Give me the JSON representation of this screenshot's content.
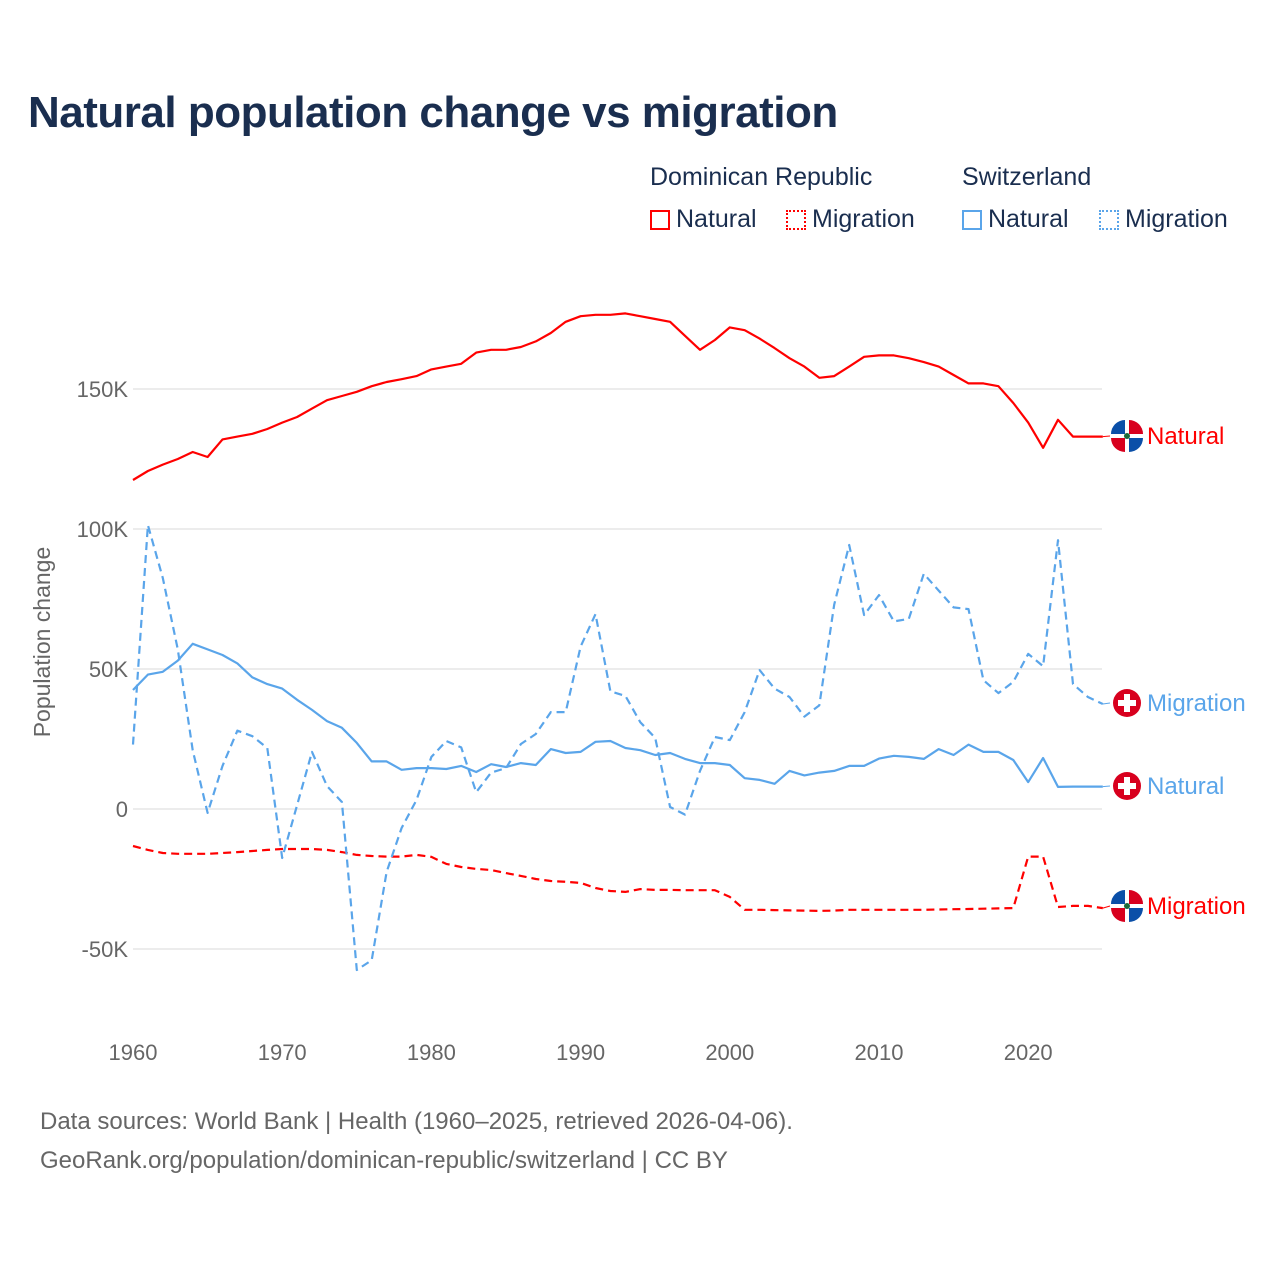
{
  "title": "Natural population change vs migration",
  "legend": {
    "groups": [
      {
        "name": "Dominican Republic",
        "items": [
          {
            "label": "Natural",
            "style": "solid"
          },
          {
            "label": "Migration",
            "style": "dotted"
          }
        ],
        "color": "#ff0000"
      },
      {
        "name": "Switzerland",
        "items": [
          {
            "label": "Natural",
            "style": "solid"
          },
          {
            "label": "Migration",
            "style": "dotted"
          }
        ],
        "color": "#5aa5ea"
      }
    ]
  },
  "footer": {
    "line1": "Data sources: World Bank | Health (1960–2025, retrieved 2026-04-06).",
    "line2": "GeoRank.org/population/dominican-republic/switzerland | CC BY"
  },
  "chart_data": {
    "type": "line",
    "title": "Natural population change vs migration",
    "xlabel": "",
    "ylabel": "Population change",
    "xlim": [
      1960,
      2025
    ],
    "ylim": [
      -70000,
      185000
    ],
    "x_ticks": [
      1960,
      1970,
      1980,
      1990,
      2000,
      2010,
      2020
    ],
    "x_tick_labels": [
      "1960",
      "1970",
      "1980",
      "1990",
      "2000",
      "2010",
      "2020"
    ],
    "y_ticks": [
      150000,
      100000,
      50000,
      0,
      -50000
    ],
    "y_tick_labels": [
      "150K",
      "100K",
      "50K",
      "0",
      "-50K"
    ],
    "grid": true,
    "legend_placement": "top-right",
    "x_start": 1960,
    "series": [
      {
        "name": "Dominican Republic Natural",
        "end_label": "Natural",
        "country": "Dominican Republic",
        "color": "#ff0000",
        "dash": false,
        "values": [
          117500,
          120700,
          123000,
          125000,
          127500,
          125700,
          132000,
          133000,
          134000,
          135700,
          138000,
          140000,
          143000,
          146000,
          147500,
          149000,
          151000,
          152500,
          153500,
          154600,
          157000,
          158000,
          159000,
          163000,
          164000,
          164000,
          165000,
          167000,
          170000,
          174000,
          176000,
          176500,
          176500,
          177000,
          176000,
          175000,
          174000,
          169000,
          164000,
          167500,
          172000,
          171000,
          168000,
          164600,
          161000,
          158000,
          154000,
          154600,
          158000,
          161500,
          162000,
          162000,
          161000,
          159600,
          158000,
          155000,
          152000,
          152000,
          151000,
          145000,
          138000,
          129000,
          139000,
          133000,
          133000,
          133000
        ]
      },
      {
        "name": "Dominican Republic Migration",
        "end_label": "Migration",
        "country": "Dominican Republic",
        "color": "#ff0000",
        "dash": true,
        "values": [
          -13200,
          -14600,
          -15700,
          -16000,
          -16000,
          -16000,
          -15700,
          -15400,
          -15000,
          -14600,
          -14300,
          -14300,
          -14300,
          -14600,
          -15400,
          -16400,
          -16800,
          -17000,
          -17000,
          -16400,
          -17100,
          -19600,
          -20700,
          -21400,
          -21800,
          -22900,
          -23900,
          -25000,
          -25700,
          -26000,
          -26400,
          -28200,
          -29300,
          -29600,
          -28600,
          -28900,
          -28900,
          -29000,
          -29000,
          -29000,
          -31400,
          -36000,
          -36000,
          -36100,
          -36200,
          -36300,
          -36400,
          -36300,
          -36000,
          -36000,
          -36000,
          -36000,
          -36000,
          -36000,
          -35900,
          -35800,
          -35700,
          -35600,
          -35500,
          -35400,
          -17000,
          -17000,
          -35000,
          -34600,
          -34600,
          -35400
        ]
      },
      {
        "name": "Switzerland Natural",
        "end_label": "Natural",
        "country": "Switzerland",
        "color": "#5aa5ea",
        "dash": false,
        "values": [
          42500,
          48000,
          49000,
          53000,
          59000,
          57000,
          55000,
          52000,
          47000,
          44600,
          43000,
          39000,
          35400,
          31400,
          29000,
          23600,
          17000,
          17000,
          14000,
          14600,
          14600,
          14300,
          15400,
          13200,
          16000,
          15000,
          16400,
          15700,
          21400,
          20000,
          20400,
          24000,
          24300,
          21800,
          21000,
          19300,
          20000,
          17900,
          16400,
          16400,
          15700,
          11000,
          10400,
          9000,
          13600,
          12000,
          13000,
          13600,
          15400,
          15400,
          18000,
          19000,
          18600,
          17900,
          21400,
          19300,
          23000,
          20400,
          20400,
          17500,
          9600,
          18200,
          7900,
          8000,
          8000,
          8000
        ]
      },
      {
        "name": "Switzerland Migration",
        "end_label": "Migration",
        "country": "Switzerland",
        "color": "#5aa5ea",
        "dash": true,
        "values": [
          23000,
          101400,
          82500,
          57000,
          21000,
          -1400,
          15400,
          28000,
          26000,
          21800,
          -17500,
          1400,
          20400,
          8200,
          2500,
          -57500,
          -54000,
          -22500,
          -6800,
          3200,
          18600,
          24300,
          22000,
          6000,
          13000,
          14600,
          23200,
          26800,
          34600,
          34600,
          58000,
          69600,
          42000,
          40400,
          31000,
          25400,
          700,
          -2000,
          13600,
          25700,
          24600,
          34600,
          49600,
          43000,
          40000,
          33000,
          37000,
          73000,
          94300,
          69300,
          76400,
          67000,
          67900,
          84000,
          78000,
          72000,
          71400,
          46000,
          41400,
          45400,
          55400,
          51000,
          96000,
          44600,
          40000,
          37500
        ]
      }
    ]
  }
}
